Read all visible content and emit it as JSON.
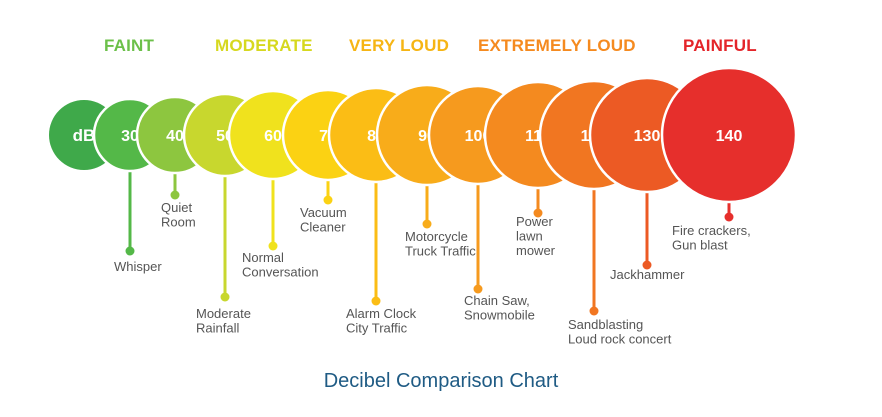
{
  "categories": [
    {
      "label": "FAINT",
      "color": "#6cc04a"
    },
    {
      "label": "MODERATE",
      "color": "#d6d81f"
    },
    {
      "label": "VERY LOUD",
      "color": "#f6b514"
    },
    {
      "label": "EXTREMELY LOUD",
      "color": "#f58a1f"
    },
    {
      "label": "PAINFUL",
      "color": "#e4252a"
    }
  ],
  "unit_label": "dB",
  "levels": [
    {
      "db": "30",
      "color": "#54b848",
      "label": [
        "Whisper"
      ]
    },
    {
      "db": "40",
      "color": "#8dc63f",
      "label": [
        "Quiet",
        "Room"
      ]
    },
    {
      "db": "50",
      "color": "#c8d72e",
      "label": [
        "Moderate",
        "Rainfall"
      ]
    },
    {
      "db": "60",
      "color": "#f0e21d",
      "label": [
        "Normal",
        "Conversation"
      ]
    },
    {
      "db": "70",
      "color": "#fbd213",
      "label": [
        "Vacuum",
        "Cleaner"
      ]
    },
    {
      "db": "80",
      "color": "#fbbd15",
      "label": [
        "Alarm Clock",
        "City Traffic"
      ]
    },
    {
      "db": "90",
      "color": "#f8ac1a",
      "label": [
        "Motorcycle",
        "Truck Traffic"
      ]
    },
    {
      "db": "100",
      "color": "#f69a1e",
      "label": [
        "Chain Saw,",
        "Snowmobile"
      ]
    },
    {
      "db": "110",
      "color": "#f48a1f",
      "label": [
        "Power",
        "lawn",
        "mower"
      ]
    },
    {
      "db": "120",
      "color": "#f17621",
      "label": [
        "Sandblasting",
        "Loud rock concert"
      ]
    },
    {
      "db": "130",
      "color": "#ec5a24",
      "label": [
        "Jackhammer"
      ]
    },
    {
      "db": "140",
      "color": "#e62f2c",
      "label": [
        "Fire crackers,",
        "Gun blast"
      ]
    }
  ],
  "db_circle_color": "#3fa94a",
  "label_color": "#555555",
  "title": "Decibel Comparison Chart",
  "title_color": "#1f5b84"
}
